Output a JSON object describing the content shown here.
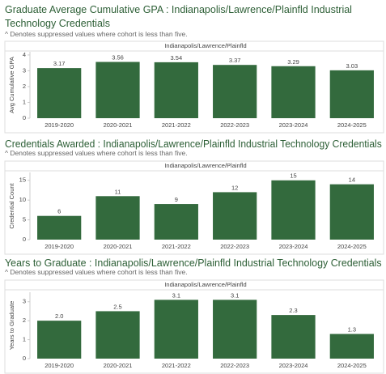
{
  "chart_data": [
    {
      "type": "bar",
      "title": "Graduate Average Cumulative GPA : Indianapolis/Lawrence/Plainfld Industrial Technology Credentials",
      "subtitle": "^ Denotes suppressed values where cohort is less than five.",
      "panel_label": "Indianapolis/Lawrence/Plainfld",
      "y_label": "Avg Cumulative GPA",
      "categories": [
        "2019-2020",
        "2020-2021",
        "2021-2022",
        "2022-2023",
        "2023-2024",
        "2024-2025"
      ],
      "values": [
        3.17,
        3.56,
        3.54,
        3.37,
        3.29,
        3.03
      ],
      "color": "#336a3d",
      "ylim": [
        0,
        4.2
      ],
      "yticks": [
        0,
        1,
        2,
        3,
        4
      ],
      "grid": false
    },
    {
      "type": "bar",
      "title": "Credentials Awarded : Indianapolis/Lawrence/Plainfld Industrial Technology Credentials",
      "subtitle": "^ Denotes suppressed values where cohort is less than five.",
      "panel_label": "Indianapolis/Lawrence/Plainfld",
      "y_label": "Credential Count",
      "categories": [
        "2019-2020",
        "2020-2021",
        "2021-2022",
        "2022-2023",
        "2023-2024",
        "2024-2025"
      ],
      "values": [
        6,
        11,
        9,
        12,
        15,
        14
      ],
      "color": "#336a3d",
      "ylim": [
        0,
        17
      ],
      "yticks": [
        0,
        5,
        10,
        15
      ],
      "grid": false
    },
    {
      "type": "bar",
      "title": "Years to Graduate : Indianapolis/Lawrence/Plainfld Industrial Technology Credentials",
      "subtitle": "^ Denotes suppressed values where cohort is less than five.",
      "panel_label": "Indianapolis/Lawrence/Plainfld",
      "y_label": "Years to Graduate",
      "categories": [
        "2019-2020",
        "2020-2021",
        "2021-2022",
        "2022-2023",
        "2023-2024",
        "2024-2025"
      ],
      "values": [
        2,
        2.5,
        3.1,
        3.1,
        2.3,
        1.3
      ],
      "value_labels": [
        "2.0",
        "2.5",
        "3.1",
        "3.1",
        "2.3",
        "1.3"
      ],
      "color": "#336a3d",
      "ylim": [
        0,
        3.5
      ],
      "yticks": [
        0,
        1,
        2,
        3
      ],
      "grid": false
    }
  ]
}
